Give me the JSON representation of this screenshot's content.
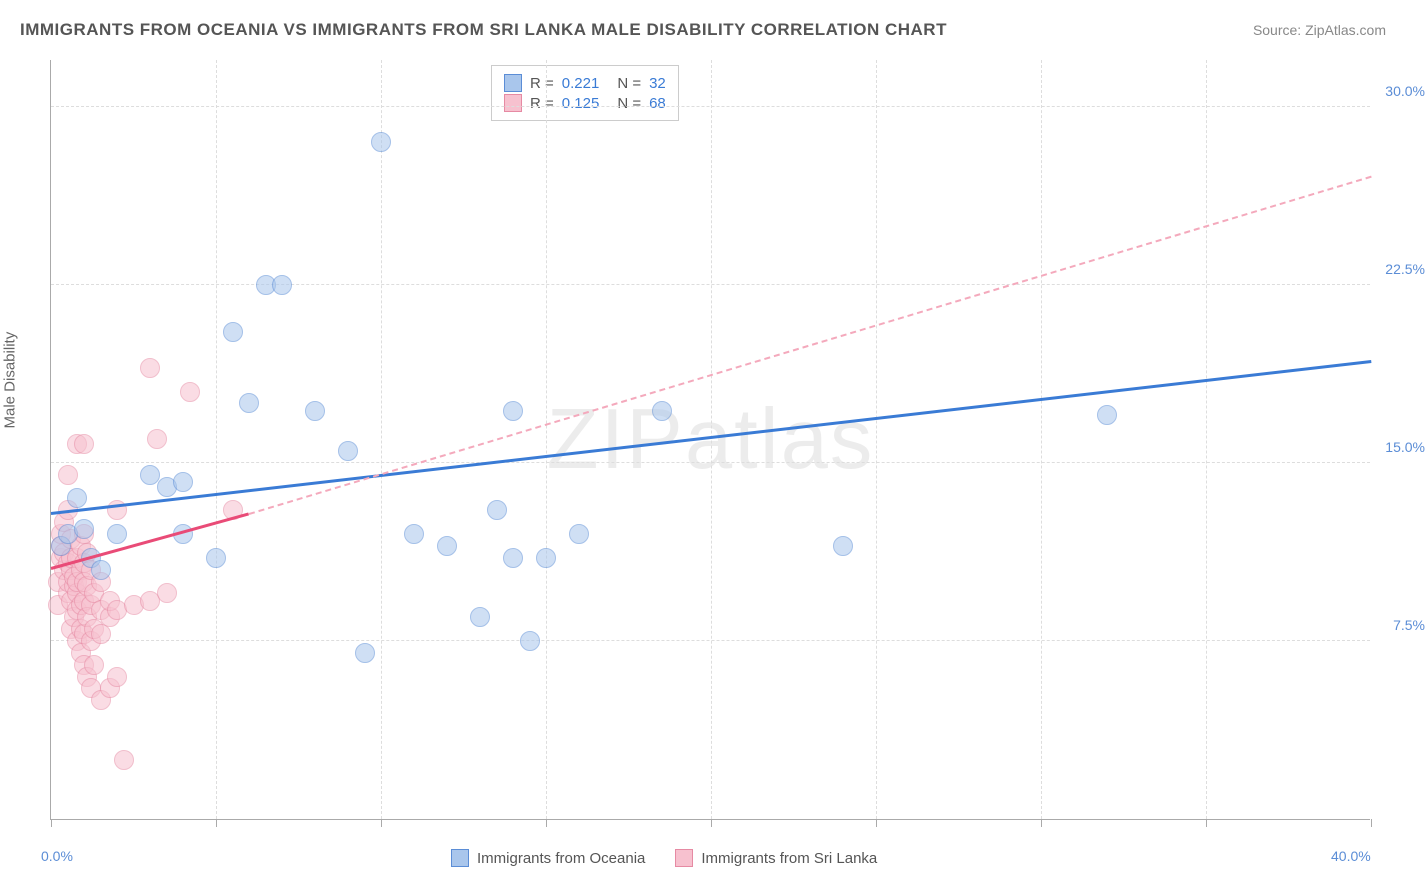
{
  "title": "IMMIGRANTS FROM OCEANIA VS IMMIGRANTS FROM SRI LANKA MALE DISABILITY CORRELATION CHART",
  "source": "Source: ZipAtlas.com",
  "watermark": "ZIPatlas",
  "y_axis_title": "Male Disability",
  "chart": {
    "type": "scatter",
    "background_color": "#ffffff",
    "grid_color": "#dddddd",
    "xlim": [
      0,
      40
    ],
    "ylim": [
      0,
      32
    ],
    "x_ticks": [
      0,
      5,
      10,
      15,
      20,
      25,
      30,
      35,
      40
    ],
    "x_tick_labels": {
      "0": "0.0%",
      "40": "40.0%"
    },
    "y_ticks": [
      7.5,
      15.0,
      22.5,
      30.0
    ],
    "y_tick_labels": [
      "7.5%",
      "15.0%",
      "22.5%",
      "30.0%"
    ],
    "marker_radius": 10,
    "series": [
      {
        "name": "Immigrants from Oceania",
        "color_fill": "#a9c6ec",
        "color_stroke": "#5b8dd6",
        "R": "0.221",
        "N": "32",
        "trend": {
          "x1": 0,
          "y1": 12.8,
          "x2": 40,
          "y2": 19.2,
          "color": "#3a7bd5",
          "width": 3,
          "dash": false
        },
        "points": [
          [
            0.3,
            11.5
          ],
          [
            0.5,
            12.0
          ],
          [
            0.8,
            13.5
          ],
          [
            1.0,
            12.2
          ],
          [
            1.2,
            11.0
          ],
          [
            1.5,
            10.5
          ],
          [
            2.0,
            12.0
          ],
          [
            3.0,
            14.5
          ],
          [
            3.5,
            14.0
          ],
          [
            4.0,
            14.2
          ],
          [
            4.0,
            12.0
          ],
          [
            5.0,
            11.0
          ],
          [
            5.5,
            20.5
          ],
          [
            6.0,
            17.5
          ],
          [
            6.5,
            22.5
          ],
          [
            7.0,
            22.5
          ],
          [
            8.0,
            17.2
          ],
          [
            9.0,
            15.5
          ],
          [
            9.5,
            7.0
          ],
          [
            10.0,
            28.5
          ],
          [
            11.0,
            12.0
          ],
          [
            12.0,
            11.5
          ],
          [
            13.0,
            8.5
          ],
          [
            13.5,
            13.0
          ],
          [
            14.0,
            17.2
          ],
          [
            14.0,
            11.0
          ],
          [
            14.5,
            7.5
          ],
          [
            15.0,
            11.0
          ],
          [
            16.0,
            12.0
          ],
          [
            18.5,
            17.2
          ],
          [
            24.0,
            11.5
          ],
          [
            32.0,
            17.0
          ]
        ]
      },
      {
        "name": "Immigrants from Sri Lanka",
        "color_fill": "#f7c1cf",
        "color_stroke": "#e68aa3",
        "R": "0.125",
        "N": "68",
        "trend": {
          "x1": 0,
          "y1": 10.5,
          "x2": 6,
          "y2": 12.8,
          "color": "#e94b77",
          "width": 3,
          "dash": false
        },
        "trend_ext": {
          "x1": 6,
          "y1": 12.8,
          "x2": 40,
          "y2": 27.0,
          "color": "#f4a9bc",
          "width": 2,
          "dash": true
        },
        "points": [
          [
            0.2,
            9.0
          ],
          [
            0.2,
            10.0
          ],
          [
            0.3,
            11.0
          ],
          [
            0.3,
            11.5
          ],
          [
            0.3,
            12.0
          ],
          [
            0.4,
            10.5
          ],
          [
            0.4,
            11.2
          ],
          [
            0.4,
            12.5
          ],
          [
            0.5,
            9.5
          ],
          [
            0.5,
            10.0
          ],
          [
            0.5,
            10.8
          ],
          [
            0.5,
            13.0
          ],
          [
            0.5,
            14.5
          ],
          [
            0.6,
            8.0
          ],
          [
            0.6,
            9.2
          ],
          [
            0.6,
            10.5
          ],
          [
            0.6,
            11.0
          ],
          [
            0.6,
            11.8
          ],
          [
            0.7,
            8.5
          ],
          [
            0.7,
            9.8
          ],
          [
            0.7,
            10.2
          ],
          [
            0.8,
            7.5
          ],
          [
            0.8,
            8.8
          ],
          [
            0.8,
            9.5
          ],
          [
            0.8,
            10.0
          ],
          [
            0.8,
            11.0
          ],
          [
            0.8,
            15.8
          ],
          [
            0.9,
            7.0
          ],
          [
            0.9,
            8.0
          ],
          [
            0.9,
            9.0
          ],
          [
            0.9,
            10.5
          ],
          [
            0.9,
            11.5
          ],
          [
            1.0,
            6.5
          ],
          [
            1.0,
            7.8
          ],
          [
            1.0,
            9.2
          ],
          [
            1.0,
            10.0
          ],
          [
            1.0,
            10.8
          ],
          [
            1.0,
            12.0
          ],
          [
            1.0,
            15.8
          ],
          [
            1.1,
            6.0
          ],
          [
            1.1,
            8.5
          ],
          [
            1.1,
            9.8
          ],
          [
            1.1,
            11.2
          ],
          [
            1.2,
            5.5
          ],
          [
            1.2,
            7.5
          ],
          [
            1.2,
            9.0
          ],
          [
            1.2,
            10.5
          ],
          [
            1.3,
            6.5
          ],
          [
            1.3,
            8.0
          ],
          [
            1.3,
            9.5
          ],
          [
            1.5,
            5.0
          ],
          [
            1.5,
            7.8
          ],
          [
            1.5,
            8.8
          ],
          [
            1.5,
            10.0
          ],
          [
            1.8,
            5.5
          ],
          [
            1.8,
            8.5
          ],
          [
            1.8,
            9.2
          ],
          [
            2.0,
            6.0
          ],
          [
            2.0,
            8.8
          ],
          [
            2.0,
            13.0
          ],
          [
            2.2,
            2.5
          ],
          [
            2.5,
            9.0
          ],
          [
            3.0,
            9.2
          ],
          [
            3.0,
            19.0
          ],
          [
            3.2,
            16.0
          ],
          [
            3.5,
            9.5
          ],
          [
            4.2,
            18.0
          ],
          [
            5.5,
            13.0
          ]
        ]
      }
    ]
  },
  "legend_bottom": [
    {
      "label": "Immigrants from Oceania",
      "fill": "#a9c6ec",
      "stroke": "#5b8dd6"
    },
    {
      "label": "Immigrants from Sri Lanka",
      "fill": "#f7c1cf",
      "stroke": "#e68aa3"
    }
  ]
}
